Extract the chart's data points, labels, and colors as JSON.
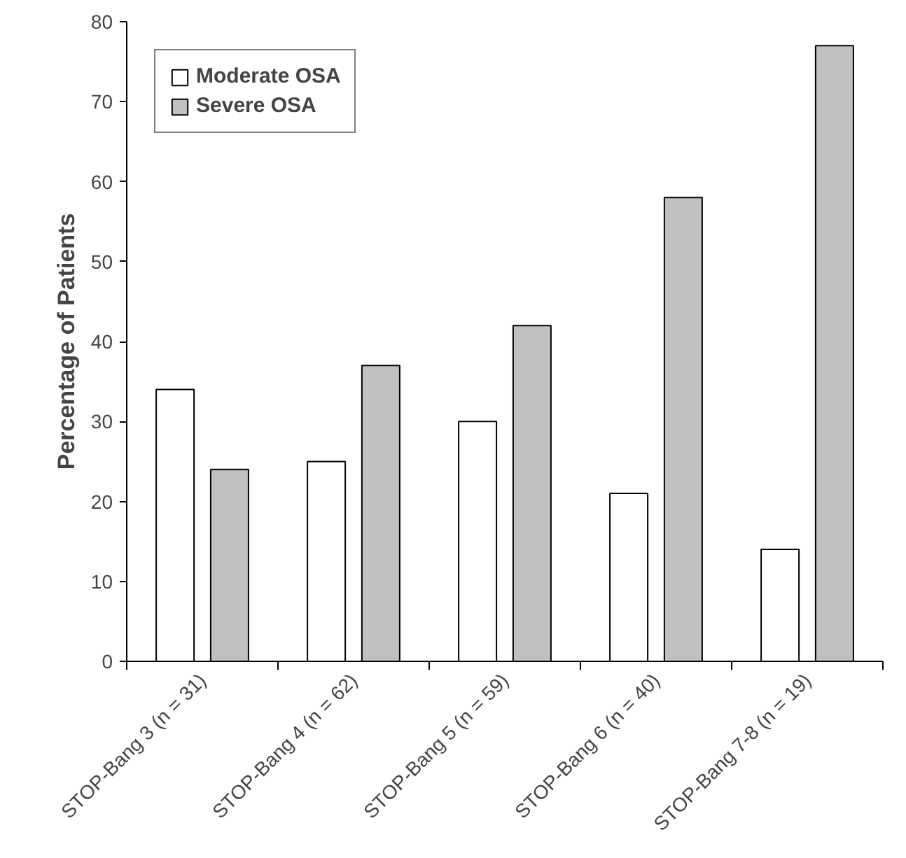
{
  "chart_data": {
    "type": "bar",
    "ylabel": "Percentage of Patients",
    "categories": [
      "STOP-Bang 3 (n = 31)",
      "STOP-Bang 4 (n = 62)",
      "STOP-Bang 5 (n = 59)",
      "STOP-Bang 6 (n = 40)",
      "STOP-Bang 7-8 (n = 19)"
    ],
    "series": [
      {
        "name": "Moderate OSA",
        "color": "#ffffff",
        "values": [
          34,
          25,
          30,
          21,
          14
        ]
      },
      {
        "name": "Severe OSA",
        "color": "#c0c0c0",
        "values": [
          24,
          37,
          42,
          58,
          77
        ]
      }
    ],
    "ylim": [
      0,
      80
    ],
    "yticks": [
      0,
      10,
      20,
      30,
      40,
      50,
      60,
      70,
      80
    ],
    "grid": false,
    "legend": "top left"
  }
}
